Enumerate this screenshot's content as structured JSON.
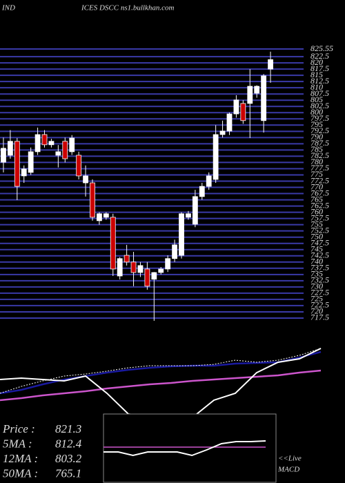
{
  "chart_data": [
    {
      "type": "candlestick",
      "title": [
        "IND",
        "ICES DSCC ns1.bullkhan.com"
      ],
      "open": [
        780.1,
        782.9,
        788.5,
        774.6,
        776,
        784.3,
        791.2,
        787.1,
        782.9,
        788.5,
        784.3,
        782.9,
        771.8,
        771.8,
        756.6,
        758.0,
        758.0,
        734.4,
        742.7,
        740.0,
        735.8,
        737.2,
        733.1,
        735.8,
        737.2,
        741.4,
        742.7,
        758.0,
        755.2,
        766.3,
        770.4,
        773.2,
        791.2,
        792.6,
        799.5,
        803.7,
        803.7,
        807.8,
        796.8,
        817.5
      ],
      "high": [
        790,
        793,
        789.8,
        778.8,
        786,
        794,
        793,
        789.5,
        787,
        790,
        791,
        784.3,
        778.8,
        773.2,
        760,
        760,
        759.4,
        742,
        746.9,
        744.1,
        740,
        740,
        736,
        738,
        742.7,
        749,
        760,
        760.5,
        769,
        771.8,
        776,
        795,
        796.8,
        800,
        807,
        805,
        817.5,
        811,
        815.5,
        824.5
      ],
      "low": [
        776,
        781.5,
        764.9,
        771.8,
        775,
        783,
        786,
        786,
        778,
        780,
        783,
        773.2,
        766.3,
        756.6,
        755,
        757,
        734.4,
        733,
        738.6,
        730.3,
        734,
        728.9,
        716.4,
        735,
        736,
        740,
        741.4,
        757,
        754,
        765,
        769,
        771.8,
        790,
        791,
        798,
        795.5,
        789.8,
        806,
        792,
        812.0
      ],
      "close": [
        785.7,
        788.5,
        770.4,
        777.4,
        784.3,
        791.2,
        787.1,
        788.5,
        784.3,
        781.5,
        789.8,
        774.6,
        774.6,
        758.0,
        759.4,
        759.4,
        737.2,
        741.4,
        740.0,
        735.8,
        738.6,
        730.3,
        735.8,
        737.2,
        741.4,
        746.9,
        759.4,
        759.4,
        766.3,
        770.4,
        774.6,
        791.2,
        792.6,
        799.5,
        805.1,
        796.8,
        810.6,
        810.6,
        814.8,
        821.3
      ],
      "up_color": "#ffffff",
      "down_color": "#cc0000",
      "grid_color": "#3a3aa8",
      "ylim": [
        715,
        830
      ],
      "yticks": [
        825.55,
        822.5,
        820,
        817.5,
        815,
        812.5,
        810,
        807.5,
        805,
        802.5,
        800,
        797.5,
        795,
        792.5,
        790,
        787.5,
        785,
        782.5,
        780,
        777.5,
        775,
        772.5,
        770,
        767.5,
        765,
        762.5,
        760,
        757.5,
        755,
        752.5,
        750,
        747.5,
        745,
        742.5,
        740,
        737.5,
        735,
        732.5,
        730,
        727.5,
        725,
        722.5,
        720,
        717.5
      ],
      "grid": true
    },
    {
      "type": "line",
      "ylim": [
        0,
        100
      ],
      "series": [
        {
          "color": "#cc55cc",
          "width": 2.5,
          "values": [
            27.3,
            30.0,
            33.6,
            36.4,
            39.1,
            42.7,
            45.5,
            48.2,
            50,
            52.7,
            54.5,
            56.4,
            58.2,
            60,
            63.6,
            66.4
          ]
        },
        {
          "color": "#1a1aa0",
          "width": 2.5,
          "values": [
            36.4,
            40.9,
            48.2,
            54.5,
            59.1,
            63.6,
            67.3,
            70.0,
            71.8,
            72.7,
            72.7,
            75.5,
            76.4,
            77.3,
            83.6,
            90.9
          ]
        },
        {
          "color": "#ffffff",
          "width": 1,
          "dash": true,
          "values": [
            36.4,
            45.5,
            52.7,
            59.1,
            61.8,
            65.5,
            70,
            72.7,
            72.7,
            72.7,
            74.5,
            80,
            77.3,
            80,
            86.4,
            95.5
          ]
        },
        {
          "color": "#ffffff",
          "width": 2,
          "values": [
            54.5,
            56.4,
            54.5,
            52.7,
            59.1,
            36.4,
            9.1,
            4.5,
            4.5,
            4.5,
            27.3,
            36.4,
            63.6,
            77.3,
            81.8,
            95.5
          ]
        }
      ],
      "info": [
        {
          "label": "Price   :",
          "value": 821.3
        },
        {
          "label": "5MA :",
          "value": 812.4
        },
        {
          "label": "12MA :",
          "value": 803.2
        },
        {
          "label": "50MA :",
          "value": 765.1
        }
      ]
    },
    {
      "type": "line",
      "ylim": [
        0,
        100
      ],
      "annotation": [
        "<<Live",
        "MACD"
      ],
      "series": [
        {
          "color": "#cc55cc",
          "width": 1.5,
          "values": [
            52,
            52
          ]
        },
        {
          "color": "#ffffff",
          "width": 2,
          "values": [
            45,
            45,
            40,
            45,
            45,
            45,
            40,
            48,
            57,
            60,
            60,
            61
          ]
        }
      ]
    }
  ]
}
